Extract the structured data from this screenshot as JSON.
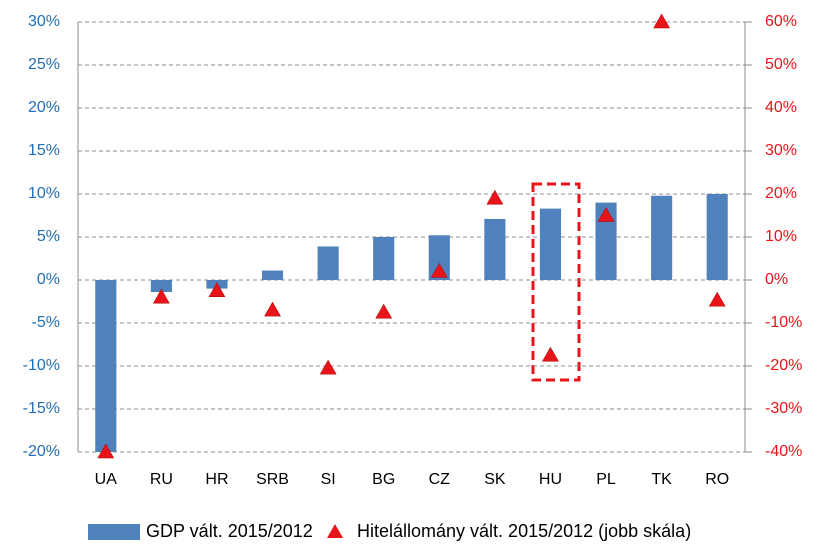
{
  "chart_data": {
    "type": "bar",
    "categories": [
      "UA",
      "RU",
      "HR",
      "SRB",
      "SI",
      "BG",
      "CZ",
      "SK",
      "HU",
      "PL",
      "TK",
      "RO"
    ],
    "series": [
      {
        "name": "GDP vált. 2015/2012",
        "color": "#4f81bd",
        "axis": "y",
        "values": [
          -20,
          -1.4,
          -1.0,
          1.1,
          3.9,
          5.0,
          5.2,
          7.1,
          8.3,
          9.0,
          9.8,
          10.0
        ]
      },
      {
        "name": "Hitelállomány vált. 2015/2012 (jobb skála)",
        "color": "#e8141a",
        "axis": "y2",
        "marker": "triangle",
        "values": [
          -40,
          -4,
          -2.5,
          -7,
          -20.5,
          -7.5,
          2,
          19,
          -17.5,
          15,
          60,
          -4.7
        ]
      }
    ],
    "ylim": [
      -20,
      30
    ],
    "yticks": [
      {
        "value": -20,
        "label": "-20%"
      },
      {
        "value": -15,
        "label": "-15%"
      },
      {
        "value": -10,
        "label": "-10%"
      },
      {
        "value": -5,
        "label": "-5%"
      },
      {
        "value": 0,
        "label": "0%"
      },
      {
        "value": 5,
        "label": "5%"
      },
      {
        "value": 10,
        "label": "10%"
      },
      {
        "value": 15,
        "label": "15%"
      },
      {
        "value": 20,
        "label": "20%"
      },
      {
        "value": 25,
        "label": "25%"
      },
      {
        "value": 30,
        "label": "30%"
      }
    ],
    "y2lim": [
      -40,
      60
    ],
    "y2ticks": [
      {
        "value": -40,
        "label": "-40%"
      },
      {
        "value": -30,
        "label": "-30%"
      },
      {
        "value": -20,
        "label": "-20%"
      },
      {
        "value": -10,
        "label": "-10%"
      },
      {
        "value": 0,
        "label": "0%"
      },
      {
        "value": 10,
        "label": "10%"
      },
      {
        "value": 20,
        "label": "20%"
      },
      {
        "value": 30,
        "label": "30%"
      },
      {
        "value": 40,
        "label": "40%"
      },
      {
        "value": 50,
        "label": "50%"
      },
      {
        "value": 60,
        "label": "60%"
      }
    ],
    "grid": true,
    "legend": "bottom"
  }
}
